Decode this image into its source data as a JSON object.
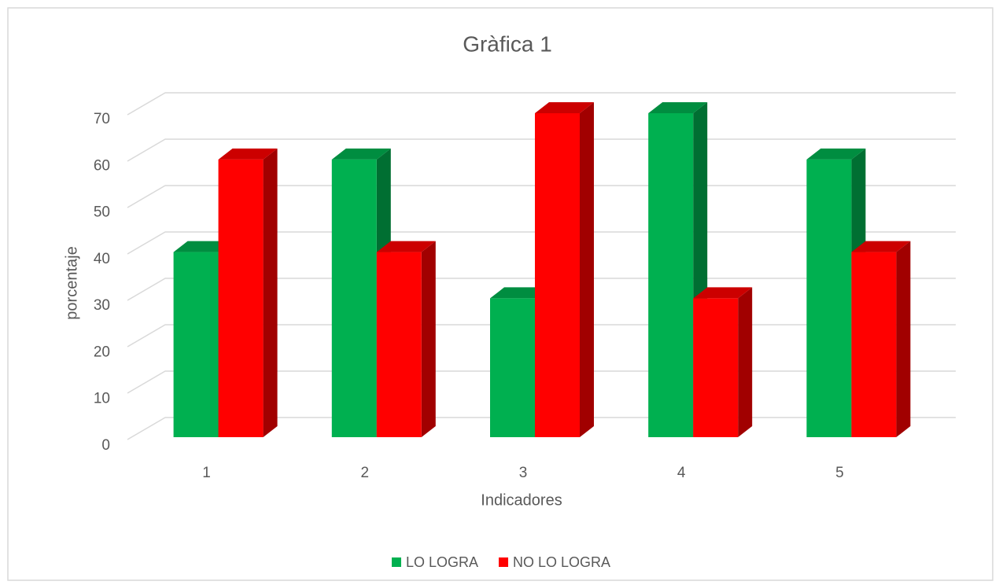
{
  "chart_data": {
    "type": "bar3d",
    "title": "Gràfica 1",
    "x_label": "Indicadores",
    "y_label": "porcentaje",
    "categories": [
      "1",
      "2",
      "3",
      "4",
      "5"
    ],
    "series": [
      {
        "name": "LO LOGRA",
        "color": "#00b050",
        "values": [
          40,
          60,
          30,
          70,
          60
        ]
      },
      {
        "name": "NO LO LOGRA",
        "color": "#ff0000",
        "values": [
          60,
          40,
          70,
          30,
          40
        ]
      }
    ],
    "ylim": [
      0,
      70
    ],
    "yticks": [
      0,
      10,
      20,
      30,
      40,
      50,
      60,
      70
    ],
    "grid": true,
    "legend": "bottom"
  }
}
